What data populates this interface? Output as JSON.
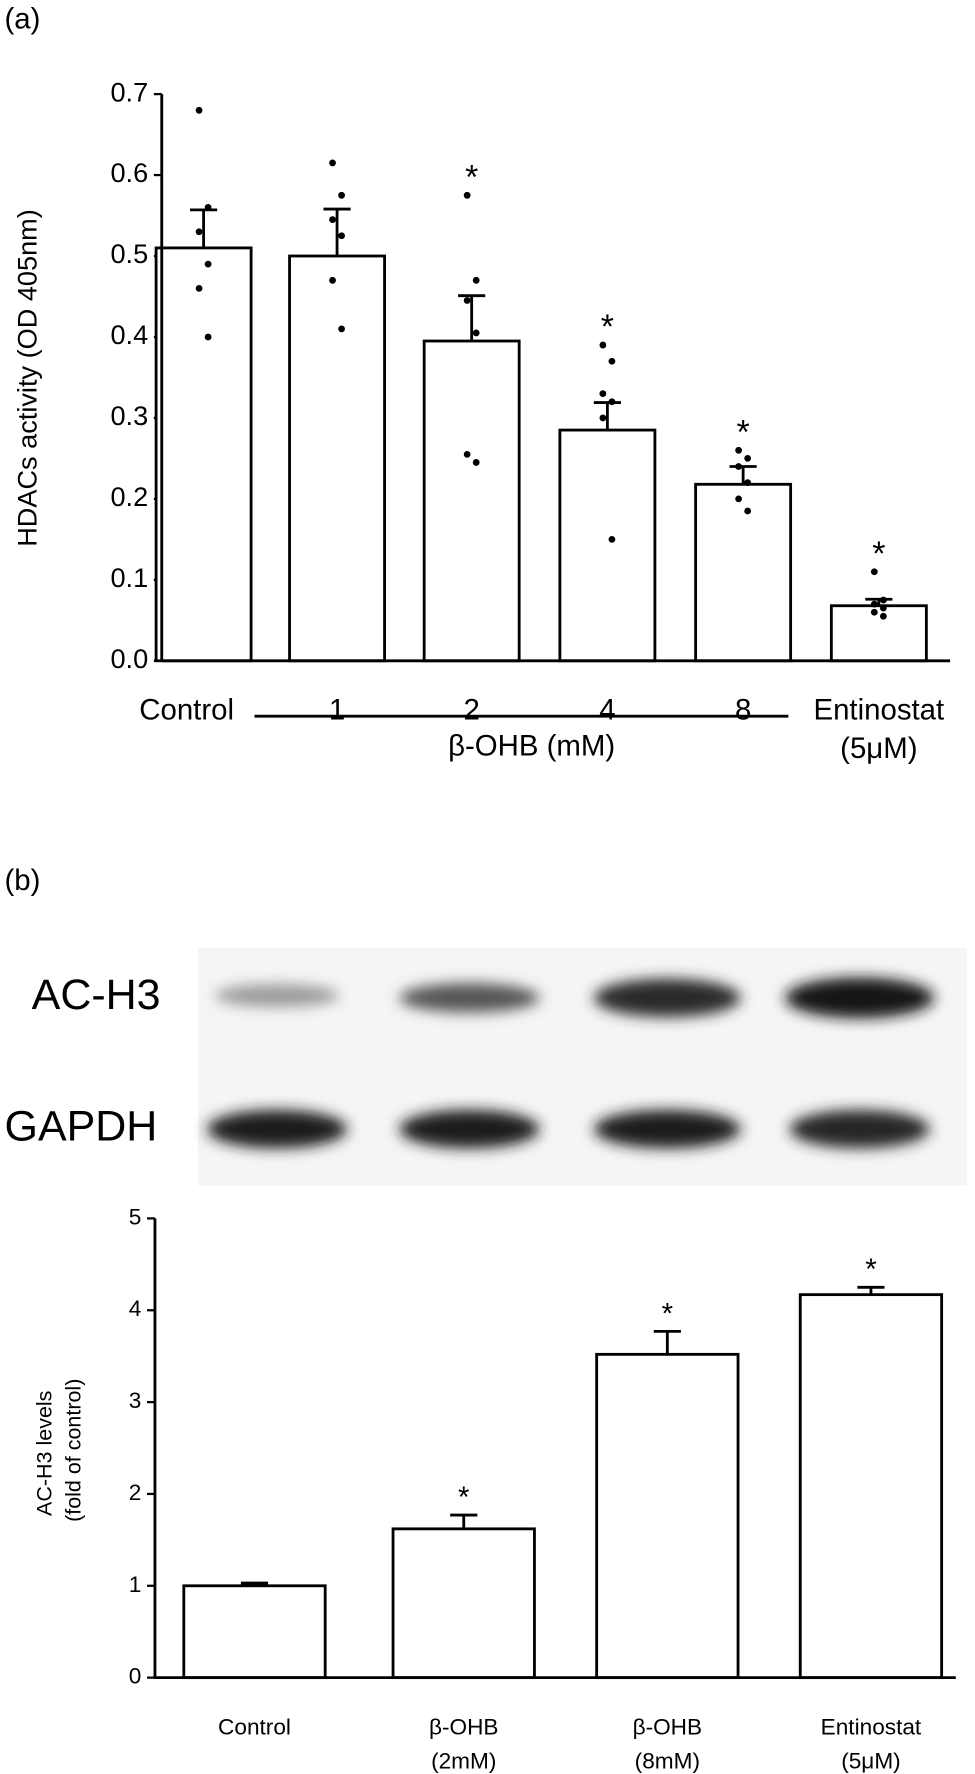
{
  "chart_data": [
    {
      "type": "bar",
      "panel": "(a)",
      "ylabel": "HDACs activity (OD 405nm)",
      "categories": [
        "Control",
        "1",
        "2",
        "4",
        "8",
        [
          "Entinostat",
          "(5μM)"
        ]
      ],
      "group_label": "β-OHB (mM)",
      "values": [
        0.51,
        0.5,
        0.395,
        0.285,
        0.218,
        0.068
      ],
      "errors": [
        0.047,
        0.058,
        0.056,
        0.034,
        0.022,
        0.008
      ],
      "points": [
        [
          0.68,
          0.56,
          0.53,
          0.49,
          0.46,
          0.4
        ],
        [
          0.615,
          0.575,
          0.545,
          0.525,
          0.47,
          0.41
        ],
        [
          0.575,
          0.47,
          0.445,
          0.405,
          0.255,
          0.245
        ],
        [
          0.39,
          0.37,
          0.33,
          0.32,
          0.3,
          0.15
        ],
        [
          0.26,
          0.25,
          0.24,
          0.22,
          0.2,
          0.185
        ],
        [
          0.11,
          0.075,
          0.07,
          0.065,
          0.06,
          0.055
        ]
      ],
      "significance": [
        null,
        null,
        "*",
        "*",
        "*",
        "*"
      ],
      "color": "#ffffff",
      "ylim": [
        0,
        0.7
      ],
      "yticks": [
        {
          "value": 0,
          "label": "0.0"
        },
        0.1,
        0.2,
        0.3,
        0.4,
        0.5,
        0.6,
        0.7
      ]
    },
    {
      "type": "bar",
      "panel": "(b)",
      "blot_labels": [
        "AC-H3",
        "GAPDH"
      ],
      "ylabel": [
        "AC-H3 levels",
        "(fold of control)"
      ],
      "categories": [
        "Control",
        [
          "β-OHB",
          "(2mM)"
        ],
        [
          "β-OHB",
          "(8mM)"
        ],
        [
          "Entinostat",
          "(5μM)"
        ]
      ],
      "values": [
        1.0,
        1.62,
        3.52,
        4.17
      ],
      "errors": [
        0.03,
        0.15,
        0.25,
        0.08
      ],
      "significance": [
        null,
        "*",
        "*",
        "*"
      ],
      "color": "#ffffff",
      "ylim": [
        0,
        5
      ],
      "yticks": [
        0,
        1,
        2,
        3,
        4,
        5
      ]
    }
  ]
}
